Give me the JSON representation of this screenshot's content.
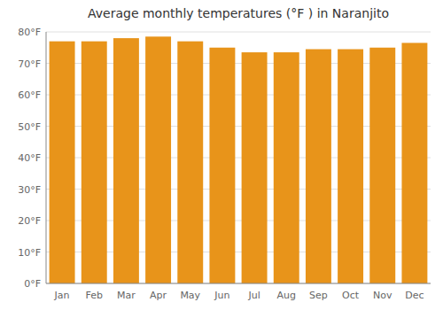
{
  "chart_data": {
    "type": "bar",
    "title": "Average monthly temperatures (°F ) in Naranjito",
    "categories": [
      "Jan",
      "Feb",
      "Mar",
      "Apr",
      "May",
      "Jun",
      "Jul",
      "Aug",
      "Sep",
      "Oct",
      "Nov",
      "Dec"
    ],
    "values": [
      77.0,
      77.0,
      78.0,
      78.5,
      77.0,
      75.0,
      73.5,
      73.5,
      74.5,
      74.5,
      75.0,
      76.5
    ],
    "color": "#E8941A",
    "ylim": [
      0,
      80
    ],
    "yticks": [
      {
        "value": 0,
        "label": "0°F"
      },
      {
        "value": 10,
        "label": "10°F"
      },
      {
        "value": 20,
        "label": "20°F"
      },
      {
        "value": 30,
        "label": "30°F"
      },
      {
        "value": 40,
        "label": "40°F"
      },
      {
        "value": 50,
        "label": "50°F"
      },
      {
        "value": 60,
        "label": "60°F"
      },
      {
        "value": 70,
        "label": "70°F"
      },
      {
        "value": 80,
        "label": "80°F"
      }
    ],
    "grid": true
  }
}
